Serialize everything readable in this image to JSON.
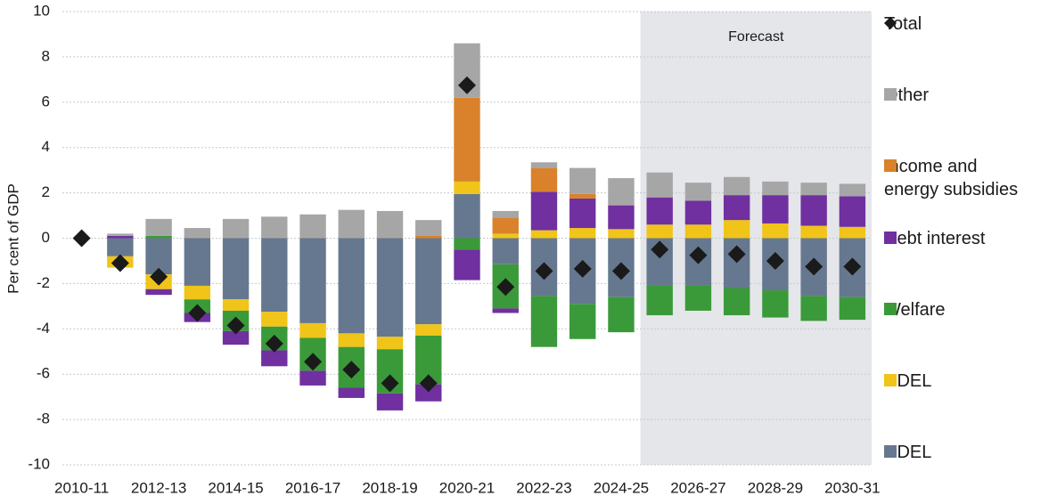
{
  "chart_data": {
    "type": "bar",
    "y_label": "Per cent of GDP",
    "forecast_label": "Forecast",
    "categories": [
      "2010-11",
      null,
      "2012-13",
      null,
      "2014-15",
      null,
      "2016-17",
      null,
      "2018-19",
      null,
      "2020-21",
      null,
      "2022-23",
      null,
      "2024-25",
      null,
      "2026-27",
      null,
      "2028-29",
      null,
      "2030-31"
    ],
    "ylim": [
      -10,
      10
    ],
    "yticks": [
      -10,
      -8,
      -6,
      -4,
      -2,
      0,
      2,
      4,
      6,
      8,
      10
    ],
    "grid": true,
    "series": [
      {
        "name": "RDEL",
        "type": "bar",
        "color": "#66788f",
        "values": [
          0,
          -0.8,
          -1.6,
          -2.1,
          -2.7,
          -3.25,
          -3.75,
          -4.2,
          -4.35,
          -3.8,
          1.95,
          -1.15,
          -2.55,
          -2.9,
          -2.6,
          -2.1,
          -2.1,
          -2.2,
          -2.3,
          -2.55,
          -2.6
        ]
      },
      {
        "name": "CDEL",
        "type": "bar",
        "color": "#f0c419",
        "values": [
          0,
          -0.5,
          -0.65,
          -0.6,
          -0.5,
          -0.65,
          -0.65,
          -0.6,
          -0.55,
          -0.5,
          0.55,
          0.2,
          0.35,
          0.45,
          0.4,
          0.6,
          0.6,
          0.8,
          0.65,
          0.55,
          0.5
        ]
      },
      {
        "name": "Welfare",
        "type": "bar",
        "color": "#3a9a3a",
        "values": [
          0,
          0,
          0.1,
          -0.6,
          -0.9,
          -1.05,
          -1.45,
          -1.8,
          -1.95,
          -2.15,
          -0.5,
          -1.95,
          -2.25,
          -1.55,
          -1.55,
          -1.3,
          -1.1,
          -1.2,
          -1.2,
          -1.1,
          -1.0
        ]
      },
      {
        "name": "Debt interest",
        "type": "bar",
        "color": "#7030a0",
        "values": [
          0,
          0.1,
          -0.25,
          -0.4,
          -0.6,
          -0.7,
          -0.65,
          -0.45,
          -0.75,
          -0.75,
          -1.35,
          -0.2,
          1.7,
          1.3,
          1.05,
          1.2,
          1.05,
          1.1,
          1.25,
          1.35,
          1.35
        ]
      },
      {
        "name": "Income and energy subsidies",
        "type": "bar",
        "color": "#d9822b",
        "values": [
          0,
          0,
          0,
          0,
          0,
          0,
          0,
          0,
          0,
          0.1,
          3.7,
          0.7,
          1.05,
          0.2,
          0,
          0,
          0,
          0,
          0,
          0,
          0
        ]
      },
      {
        "name": "Other",
        "type": "bar",
        "color": "#a6a6a6",
        "values": [
          0,
          0.1,
          0.75,
          0.45,
          0.85,
          0.95,
          1.05,
          1.25,
          1.2,
          0.7,
          2.4,
          0.3,
          0.25,
          1.15,
          1.2,
          1.1,
          0.8,
          0.8,
          0.6,
          0.55,
          0.55
        ]
      },
      {
        "name": "Total",
        "type": "scatter",
        "color": "#1a1a1a",
        "values": [
          0,
          -1.1,
          -1.7,
          -3.3,
          -3.85,
          -4.65,
          -5.45,
          -5.8,
          -6.4,
          -6.4,
          6.75,
          -2.15,
          -1.45,
          -1.35,
          -1.45,
          -0.5,
          -0.75,
          -0.7,
          -1.0,
          -1.25,
          -1.25
        ]
      }
    ]
  }
}
